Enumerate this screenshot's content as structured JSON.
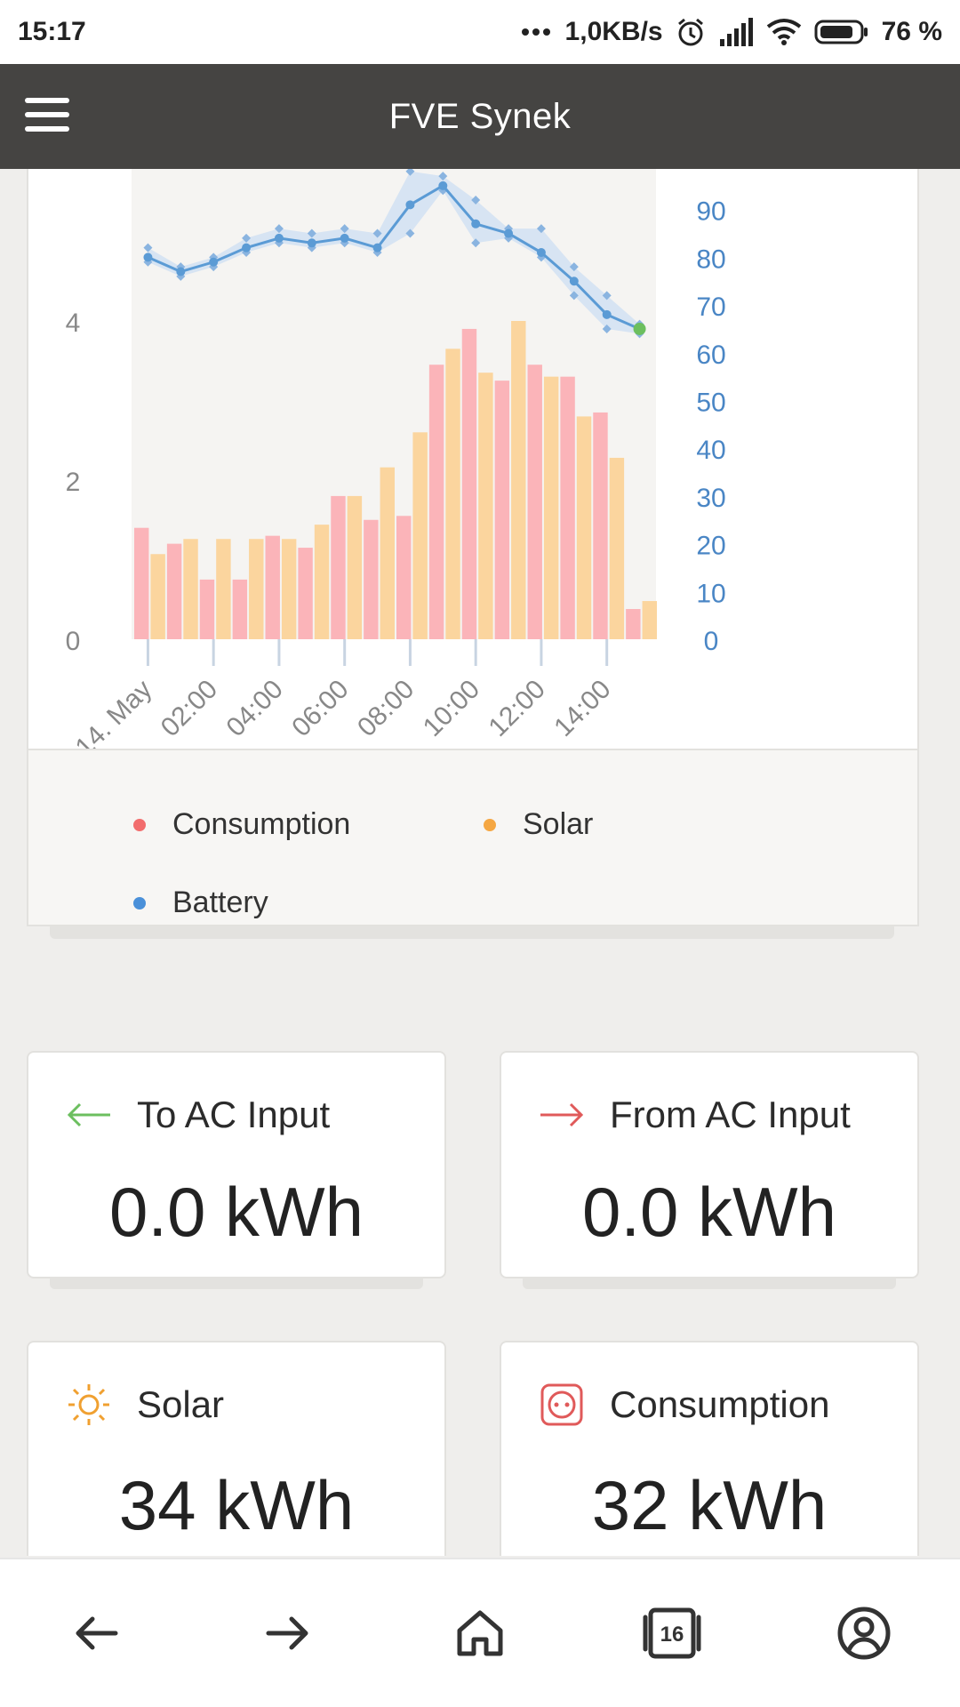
{
  "status_bar": {
    "time": "15:17",
    "network_speed": "1,0KB/s",
    "battery_percent": "76 %",
    "icons": [
      "dots-icon",
      "alarm-icon",
      "signal-icon",
      "wifi-icon",
      "battery-icon"
    ]
  },
  "app_bar": {
    "title": "FVE Synek",
    "menu_icon": "hamburger-menu-icon"
  },
  "chart_data": {
    "type": "bar",
    "left_axis": {
      "ticks": [
        "0",
        "2",
        "4"
      ],
      "ylim": [
        0,
        6
      ]
    },
    "right_axis": {
      "ticks": [
        "0",
        "10",
        "20",
        "30",
        "40",
        "50",
        "60",
        "70",
        "80",
        "90"
      ],
      "ylim": [
        0,
        100
      ]
    },
    "x_tick_labels": [
      "14. May",
      "02:00",
      "04:00",
      "06:00",
      "08:00",
      "10:00",
      "12:00",
      "14:00"
    ],
    "series": [
      {
        "name": "Consumption",
        "color": "#fbb4b9",
        "axis": "left",
        "values": [
          1.4,
          1.2,
          0.75,
          0.75,
          1.3,
          1.15,
          1.8,
          1.5,
          1.55,
          3.45,
          3.9,
          3.25,
          3.45,
          3.3,
          2.85,
          0.38
        ]
      },
      {
        "name": "Solar",
        "color": "#fbd59e",
        "axis": "left",
        "values": [
          1.07,
          1.26,
          1.26,
          1.26,
          1.26,
          1.44,
          1.8,
          2.16,
          2.6,
          3.65,
          3.35,
          4.0,
          3.3,
          2.8,
          2.28,
          0.48
        ]
      },
      {
        "name": "Battery",
        "color": "#5b9bd5",
        "axis": "right",
        "values": [
          80,
          77,
          79,
          82,
          84,
          83,
          84,
          82,
          91,
          95,
          87,
          85,
          81,
          75,
          68,
          65
        ],
        "band_low": [
          79,
          76,
          78,
          81,
          83,
          82,
          83,
          81,
          85,
          94,
          83,
          84,
          80,
          72,
          65,
          64
        ],
        "band_high": [
          82,
          78,
          80,
          84,
          86,
          85,
          86,
          85,
          98,
          97,
          92,
          86,
          86,
          78,
          72,
          66
        ]
      }
    ]
  },
  "legend": [
    {
      "label": "Consumption",
      "color": "#f26d6d"
    },
    {
      "label": "Solar",
      "color": "#f5a742"
    },
    {
      "label": "Battery",
      "color": "#4a90d9"
    }
  ],
  "stats": {
    "to_ac_input": {
      "label": "To AC Input",
      "value": "0.0 kWh",
      "icon": "arrow-left-icon",
      "icon_color": "#6cbf5f"
    },
    "from_ac_input": {
      "label": "From AC Input",
      "value": "0.0 kWh",
      "icon": "arrow-right-icon",
      "icon_color": "#e05a5a"
    },
    "solar": {
      "label": "Solar",
      "value": "34 kWh",
      "icon": "sun-icon",
      "icon_color": "#f0a030"
    },
    "consumption": {
      "label": "Consumption",
      "value": "32 kWh",
      "icon": "socket-icon",
      "icon_color": "#e05a5a"
    }
  },
  "bottom_nav": {
    "tab_count": "16",
    "items": [
      "back-icon",
      "forward-icon",
      "home-icon",
      "tabs-icon",
      "account-icon"
    ]
  }
}
